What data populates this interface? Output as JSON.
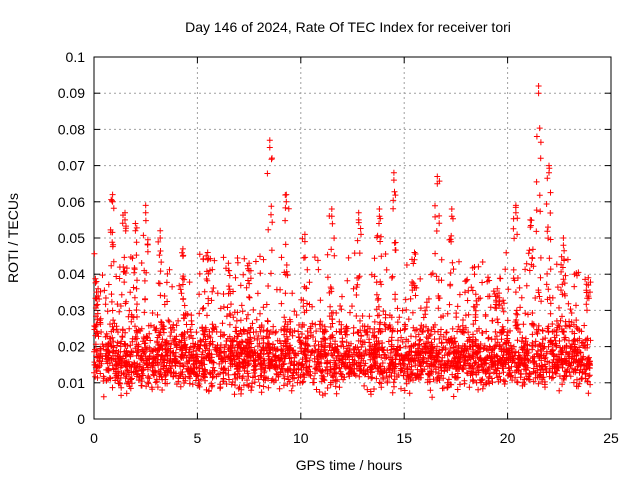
{
  "chart_data": {
    "type": "scatter",
    "title": "Day 146 of 2024, Rate Of TEC Index for receiver tori",
    "xlabel": "GPS time / hours",
    "ylabel": "ROTI / TECUs",
    "xlim": [
      0,
      25
    ],
    "ylim": [
      0,
      0.1
    ],
    "x_ticks": [
      "0",
      "5",
      "10",
      "15",
      "20",
      "25"
    ],
    "y_ticks": [
      "0",
      "0.01",
      "0.02",
      "0.03",
      "0.04",
      "0.05",
      "0.06",
      "0.07",
      "0.08",
      "0.09",
      "0.1"
    ],
    "grid": true,
    "legend": "none",
    "marker": "+",
    "series_color": "#ff0000",
    "x_range_of_points": [
      0,
      24
    ],
    "baseline_band": [
      0.005,
      0.025
    ],
    "peaks": [
      {
        "x": 0.2,
        "y": 0.036
      },
      {
        "x": 0.9,
        "y": 0.062
      },
      {
        "x": 1.5,
        "y": 0.057
      },
      {
        "x": 2.0,
        "y": 0.054
      },
      {
        "x": 2.5,
        "y": 0.059
      },
      {
        "x": 3.2,
        "y": 0.052
      },
      {
        "x": 4.3,
        "y": 0.047
      },
      {
        "x": 5.5,
        "y": 0.046
      },
      {
        "x": 6.5,
        "y": 0.043
      },
      {
        "x": 7.5,
        "y": 0.043
      },
      {
        "x": 8.5,
        "y": 0.077
      },
      {
        "x": 9.3,
        "y": 0.062
      },
      {
        "x": 10.2,
        "y": 0.051
      },
      {
        "x": 11.5,
        "y": 0.058
      },
      {
        "x": 12.8,
        "y": 0.057
      },
      {
        "x": 13.8,
        "y": 0.058
      },
      {
        "x": 14.5,
        "y": 0.068
      },
      {
        "x": 15.5,
        "y": 0.046
      },
      {
        "x": 16.6,
        "y": 0.067
      },
      {
        "x": 17.3,
        "y": 0.058
      },
      {
        "x": 18.4,
        "y": 0.042
      },
      {
        "x": 19.5,
        "y": 0.036
      },
      {
        "x": 20.4,
        "y": 0.059
      },
      {
        "x": 21.1,
        "y": 0.055
      },
      {
        "x": 21.5,
        "y": 0.092
      },
      {
        "x": 22.0,
        "y": 0.07
      },
      {
        "x": 22.7,
        "y": 0.05
      },
      {
        "x": 23.9,
        "y": 0.039
      }
    ]
  }
}
